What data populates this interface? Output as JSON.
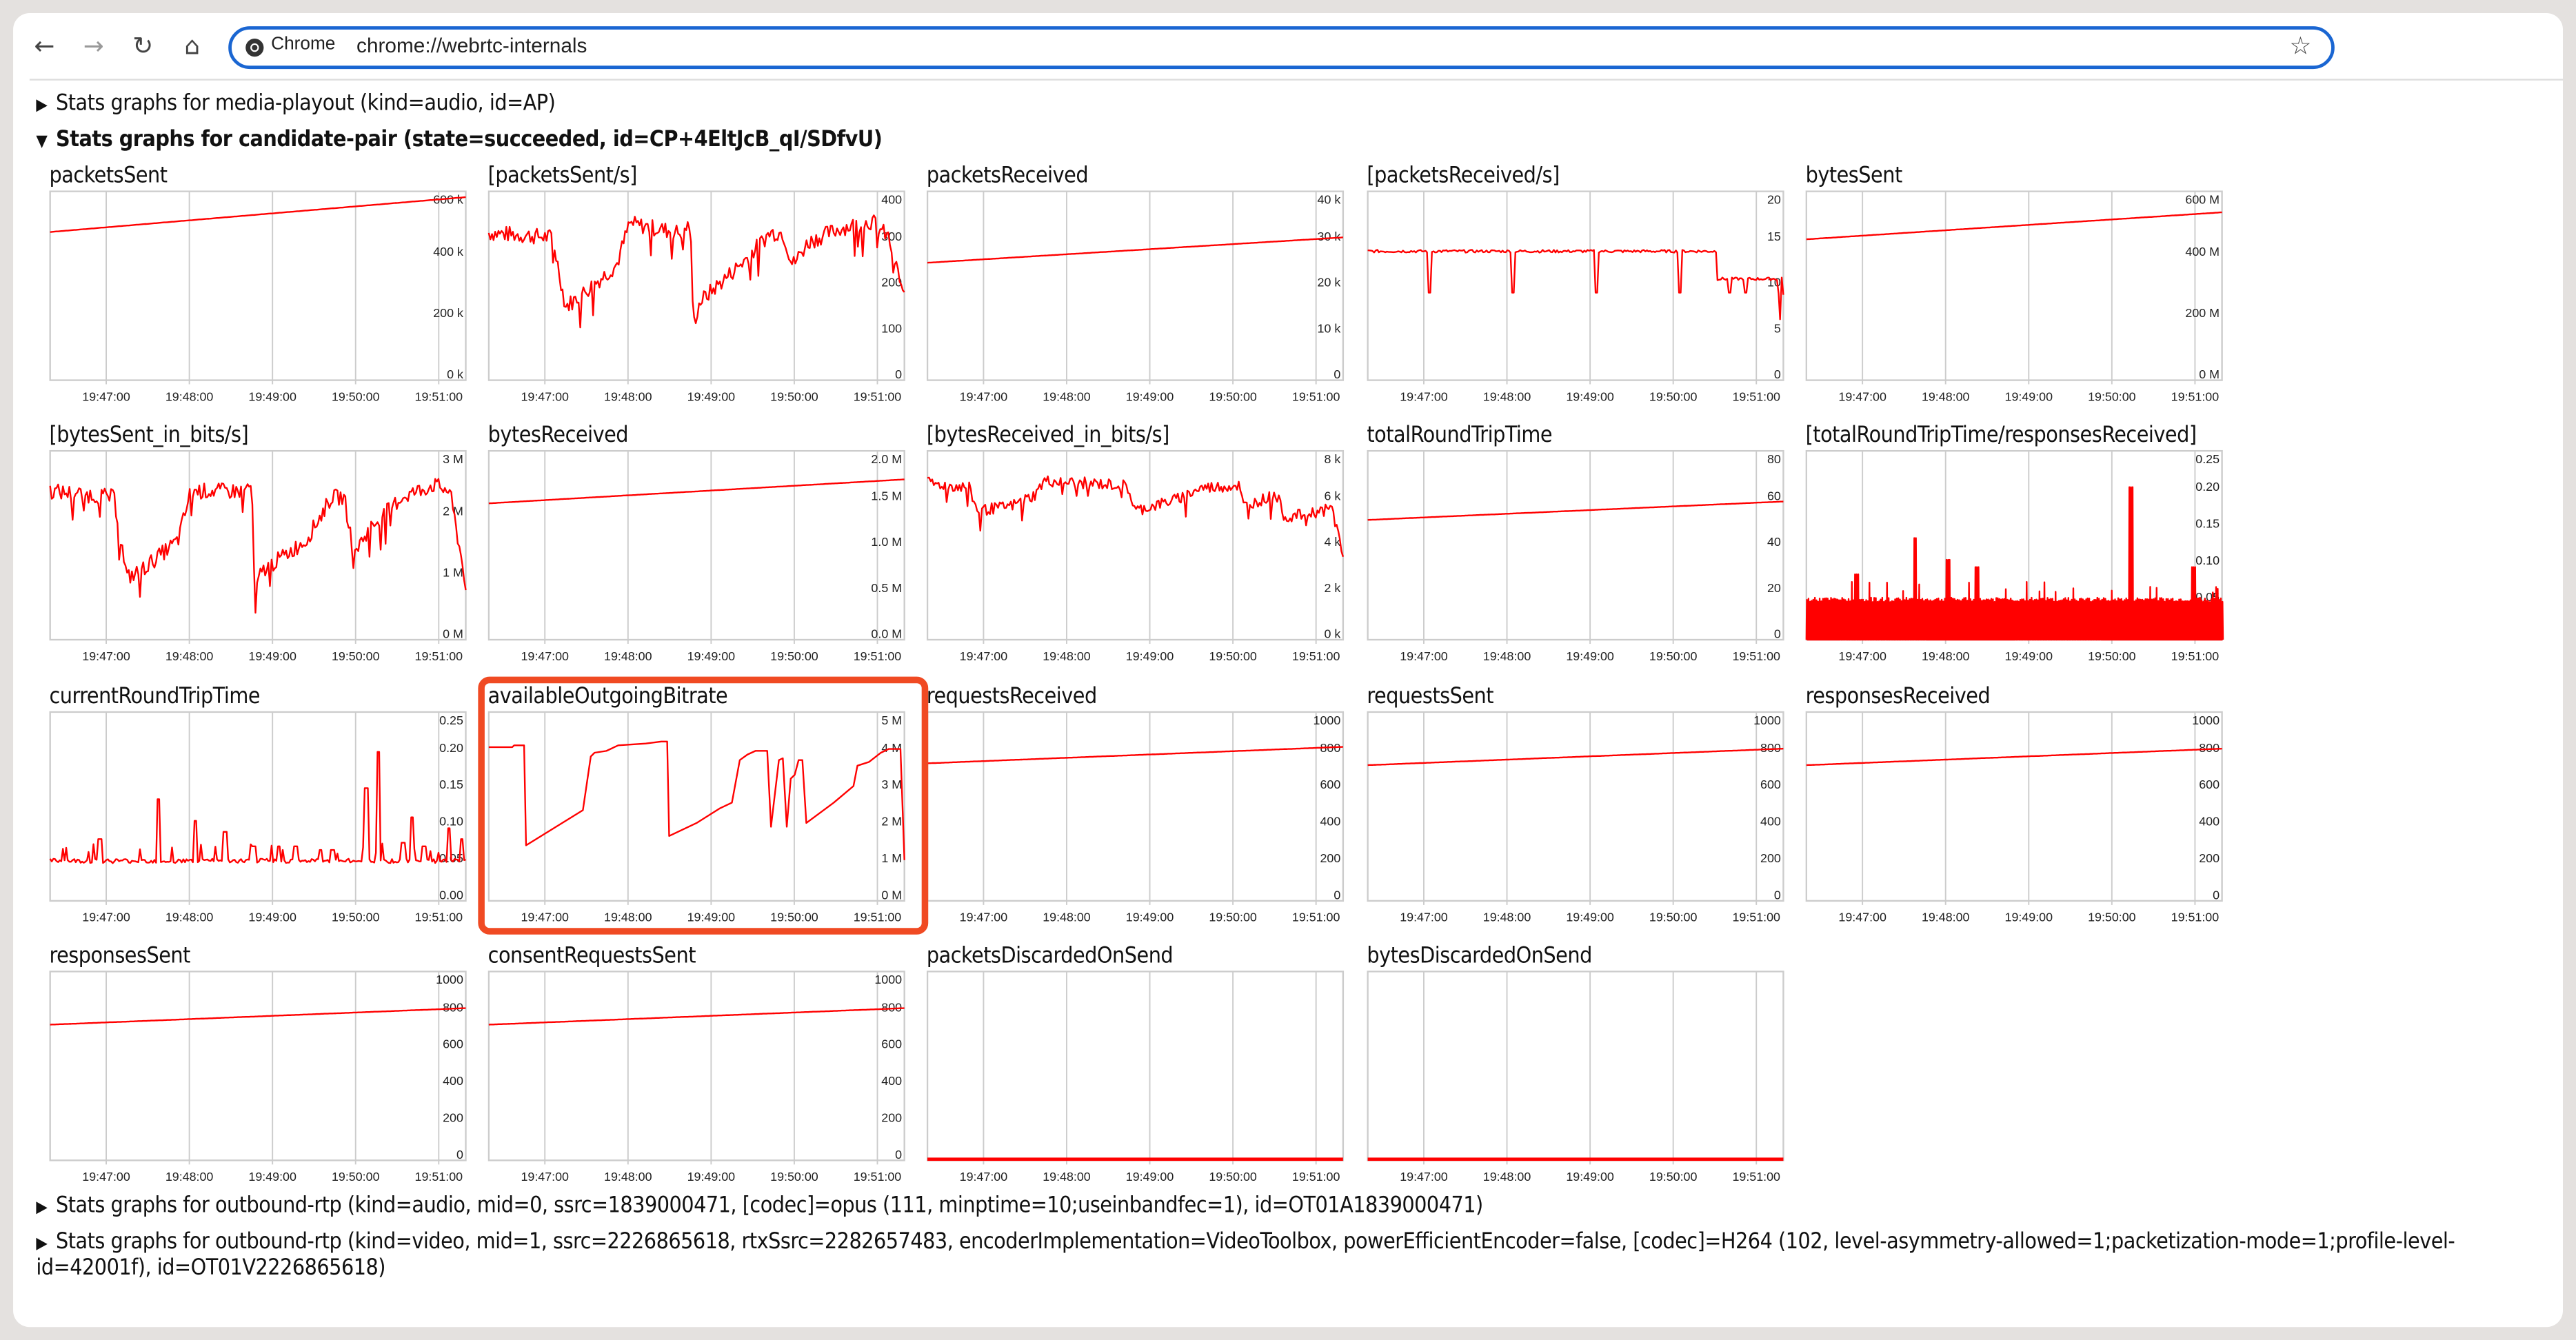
{
  "browser": {
    "nav": {
      "back": "←",
      "forward": "→",
      "reload": "↻",
      "home": "⌂"
    },
    "chip_label": "Chrome",
    "url": "chrome://webrtc-internals",
    "bookmark_icon": "☆",
    "accent_color": "#1a66d2"
  },
  "sections": [
    {
      "label": "Stats graphs for media-playout (kind=audio, id=AP)",
      "expanded": false
    },
    {
      "label": "Stats graphs for candidate-pair (state=succeeded, id=CP+4EltJcB_qI/SDfvU)",
      "expanded": true
    },
    {
      "label": "Stats graphs for outbound-rtp (kind=audio, mid=0, ssrc=1839000471, [codec]=opus (111, minptime=10;useinbandfec=1), id=OT01A1839000471)",
      "expanded": false
    },
    {
      "label": "Stats graphs for outbound-rtp (kind=video, mid=1, ssrc=2226865618, rtxSsrc=2282657483, encoderImplementation=VideoToolbox, powerEfficientEncoder=false, [codec]=H264 (102, level-asymmetry-allowed=1;packetization-mode=1;profile-level-id=42001f), id=OT01V2226865618)",
      "expanded": false
    }
  ],
  "triangles": {
    "collapsed": "▶",
    "expanded": "▼"
  },
  "highlight": {
    "graph": "availableOutgoingBitrate",
    "color": "#f04a23"
  },
  "chart_data": {
    "type": "line",
    "line_color": "#ff0000",
    "grid_color": "#cccccc",
    "x_ticks": [
      "19:47:00",
      "19:48:00",
      "19:49:00",
      "19:50:00",
      "19:51:00"
    ],
    "x_range_seconds": [
      -38,
      290
    ],
    "grid": true,
    "graphs": [
      {
        "title": "packetsSent",
        "y_ticks": [
          "0 k",
          "200 k",
          "400 k",
          "600 k"
        ],
        "ylim": [
          0,
          650000
        ],
        "shape": "linear",
        "start": 510000,
        "end": 630000
      },
      {
        "title": "[packetsSent/s]",
        "y_ticks": [
          "0",
          "100",
          "200",
          "300",
          "400"
        ],
        "ylim": [
          0,
          410
        ],
        "shape": "noisy",
        "profile": [
          [
            0,
            320
          ],
          [
            0.2,
            310
          ],
          [
            0.24,
            160
          ],
          [
            0.28,
            180
          ],
          [
            0.4,
            250
          ],
          [
            0.44,
            340
          ],
          [
            0.6,
            320
          ],
          [
            0.63,
            340
          ],
          [
            0.64,
            120
          ],
          [
            0.66,
            170
          ],
          [
            0.8,
            260
          ],
          [
            0.88,
            320
          ],
          [
            0.92,
            320
          ],
          [
            0.95,
            250
          ],
          [
            1.0,
            300
          ],
          [
            1.1,
            330
          ],
          [
            1.2,
            345
          ],
          [
            1.25,
            310
          ],
          [
            1.3,
            180
          ]
        ],
        "noise": 18
      },
      {
        "title": "packetsReceived",
        "y_ticks": [
          "0",
          "10 k",
          "20 k",
          "30 k",
          "40 k"
        ],
        "ylim": [
          0,
          41000
        ],
        "shape": "linear",
        "start": 25500,
        "end": 31000
      },
      {
        "title": "[packetsReceived/s]",
        "y_ticks": [
          "0",
          "5",
          "10",
          "15",
          "20"
        ],
        "ylim": [
          0,
          20.5
        ],
        "shape": "steps",
        "base": 14,
        "base2": 11,
        "switch": 0.84,
        "dips": [
          0.15,
          0.35,
          0.55,
          0.75,
          0.87,
          0.91
        ],
        "dip_to": 9.5
      },
      {
        "title": "bytesSent",
        "y_ticks": [
          "0 M",
          "200 M",
          "400 M",
          "600 M"
        ],
        "ylim": [
          0,
          630000000
        ],
        "shape": "linear",
        "start": 470000000,
        "end": 560000000
      },
      {
        "title": "[bytesSent_in_bits/s]",
        "y_ticks": [
          "0 M",
          "1 M",
          "2 M",
          "3 M"
        ],
        "ylim": [
          0,
          3050000
        ],
        "shape": "noisy",
        "profile": [
          [
            0,
            2400000
          ],
          [
            0.2,
            2300000
          ],
          [
            0.24,
            1000000
          ],
          [
            0.28,
            1100000
          ],
          [
            0.4,
            1600000
          ],
          [
            0.44,
            2400000
          ],
          [
            0.6,
            2400000
          ],
          [
            0.63,
            2500000
          ],
          [
            0.64,
            700000
          ],
          [
            0.66,
            1100000
          ],
          [
            0.8,
            1600000
          ],
          [
            0.88,
            2300000
          ],
          [
            0.92,
            2300000
          ],
          [
            0.95,
            1400000
          ],
          [
            1.0,
            1800000
          ],
          [
            1.1,
            2300000
          ],
          [
            1.2,
            2500000
          ],
          [
            1.25,
            2400000
          ],
          [
            1.3,
            900000
          ]
        ],
        "noise": 130000
      },
      {
        "title": "bytesReceived",
        "y_ticks": [
          "0.0 M",
          "0.5 M",
          "1.0 M",
          "1.5 M",
          "2.0 M"
        ],
        "ylim": [
          0,
          2050000
        ],
        "shape": "linear",
        "start": 1480000,
        "end": 1740000
      },
      {
        "title": "[bytesReceived_in_bits/s]",
        "y_ticks": [
          "0 k",
          "2 k",
          "4 k",
          "6 k",
          "8 k"
        ],
        "ylim": [
          0,
          8200
        ],
        "shape": "noisy",
        "profile": [
          [
            0,
            6800
          ],
          [
            0.1,
            6600
          ],
          [
            0.12,
            5600
          ],
          [
            0.2,
            5800
          ],
          [
            0.26,
            6300
          ],
          [
            0.28,
            6900
          ],
          [
            0.48,
            6700
          ],
          [
            0.5,
            5600
          ],
          [
            0.6,
            6100
          ],
          [
            0.66,
            6600
          ],
          [
            0.75,
            6700
          ],
          [
            0.76,
            5800
          ],
          [
            0.84,
            6300
          ],
          [
            0.86,
            5300
          ],
          [
            0.98,
            5700
          ],
          [
            0.99,
            4500
          ],
          [
            1.0,
            3500
          ]
        ],
        "noise": 250
      },
      {
        "title": "totalRoundTripTime",
        "y_ticks": [
          "0",
          "20",
          "40",
          "60",
          "80"
        ],
        "ylim": [
          0,
          82
        ],
        "shape": "linear",
        "start": 52,
        "end": 60
      },
      {
        "title": "[totalRoundTripTime/responsesReceived]",
        "y_ticks": [
          "0.00",
          "0.05",
          "0.10",
          "0.15",
          "0.20",
          "0.25"
        ],
        "ylim": [
          0,
          0.26
        ],
        "shape": "spiky_fill",
        "base": 0.055,
        "peaks": [
          [
            0.12,
            0.09
          ],
          [
            0.26,
            0.14
          ],
          [
            0.34,
            0.11
          ],
          [
            0.41,
            0.1
          ],
          [
            0.78,
            0.21
          ],
          [
            0.93,
            0.1
          ]
        ]
      },
      {
        "title": "currentRoundTripTime",
        "y_ticks": [
          "0.00",
          "0.05",
          "0.10",
          "0.15",
          "0.20",
          "0.25"
        ],
        "ylim": [
          0,
          0.26
        ],
        "shape": "spikes",
        "base": 0.055,
        "peaks": [
          [
            0.12,
            0.085
          ],
          [
            0.26,
            0.14
          ],
          [
            0.35,
            0.11
          ],
          [
            0.42,
            0.095
          ],
          [
            0.49,
            0.075
          ],
          [
            0.55,
            0.075
          ],
          [
            0.59,
            0.075
          ],
          [
            0.65,
            0.07
          ],
          [
            0.68,
            0.07
          ],
          [
            0.76,
            0.155
          ],
          [
            0.79,
            0.205
          ],
          [
            0.85,
            0.08
          ],
          [
            0.87,
            0.115
          ],
          [
            0.9,
            0.075
          ],
          [
            0.96,
            0.1
          ],
          [
            0.99,
            0.085
          ]
        ]
      },
      {
        "title": "availableOutgoingBitrate",
        "y_ticks": [
          "0 M",
          "1 M",
          "2 M",
          "3 M",
          "4 M",
          "5 M"
        ],
        "ylim": [
          0,
          5100000
        ],
        "shape": "points",
        "points": [
          [
            0,
            4150000
          ],
          [
            0.06,
            4150000
          ],
          [
            0.065,
            4200000
          ],
          [
            0.09,
            4200000
          ],
          [
            0.095,
            1500000
          ],
          [
            0.24,
            2450000
          ],
          [
            0.26,
            3900000
          ],
          [
            0.27,
            4000000
          ],
          [
            0.3,
            4050000
          ],
          [
            0.33,
            4200000
          ],
          [
            0.4,
            4250000
          ],
          [
            0.44,
            4300000
          ],
          [
            0.455,
            4300000
          ],
          [
            0.46,
            1750000
          ],
          [
            0.53,
            2100000
          ],
          [
            0.59,
            2500000
          ],
          [
            0.62,
            2650000
          ],
          [
            0.64,
            3800000
          ],
          [
            0.66,
            3950000
          ],
          [
            0.68,
            4050000
          ],
          [
            0.71,
            4050000
          ],
          [
            0.72,
            2000000
          ],
          [
            0.74,
            3800000
          ],
          [
            0.75,
            3850000
          ],
          [
            0.76,
            2000000
          ],
          [
            0.77,
            3300000
          ],
          [
            0.78,
            3400000
          ],
          [
            0.79,
            3800000
          ],
          [
            0.8,
            3800000
          ],
          [
            0.81,
            2100000
          ],
          [
            0.88,
            2650000
          ],
          [
            0.93,
            3100000
          ],
          [
            0.94,
            3650000
          ],
          [
            0.97,
            3750000
          ],
          [
            1.0,
            4000000
          ],
          [
            1.02,
            4100000
          ],
          [
            1.05,
            4100000
          ],
          [
            1.06,
            1100000
          ]
        ]
      },
      {
        "title": "requestsReceived",
        "y_ticks": [
          "0",
          "200",
          "400",
          "600",
          "800",
          "1000"
        ],
        "ylim": [
          0,
          1030
        ],
        "shape": "linear",
        "start": 750,
        "end": 840
      },
      {
        "title": "requestsSent",
        "y_ticks": [
          "0",
          "200",
          "400",
          "600",
          "800",
          "1000"
        ],
        "ylim": [
          0,
          1030
        ],
        "shape": "linear",
        "start": 740,
        "end": 830
      },
      {
        "title": "responsesReceived",
        "y_ticks": [
          "0",
          "200",
          "400",
          "600",
          "800",
          "1000"
        ],
        "ylim": [
          0,
          1030
        ],
        "shape": "linear",
        "start": 740,
        "end": 830
      },
      {
        "title": "responsesSent",
        "y_ticks": [
          "0",
          "200",
          "400",
          "600",
          "800",
          "1000"
        ],
        "ylim": [
          0,
          1030
        ],
        "shape": "linear",
        "start": 740,
        "end": 830
      },
      {
        "title": "consentRequestsSent",
        "y_ticks": [
          "0",
          "200",
          "400",
          "600",
          "800",
          "1000"
        ],
        "ylim": [
          0,
          1030
        ],
        "shape": "linear",
        "start": 740,
        "end": 830
      },
      {
        "title": "packetsDiscardedOnSend",
        "y_ticks": [],
        "ylim": [
          0,
          1
        ],
        "shape": "zero"
      },
      {
        "title": "bytesDiscardedOnSend",
        "y_ticks": [],
        "ylim": [
          0,
          1
        ],
        "shape": "zero"
      }
    ]
  }
}
